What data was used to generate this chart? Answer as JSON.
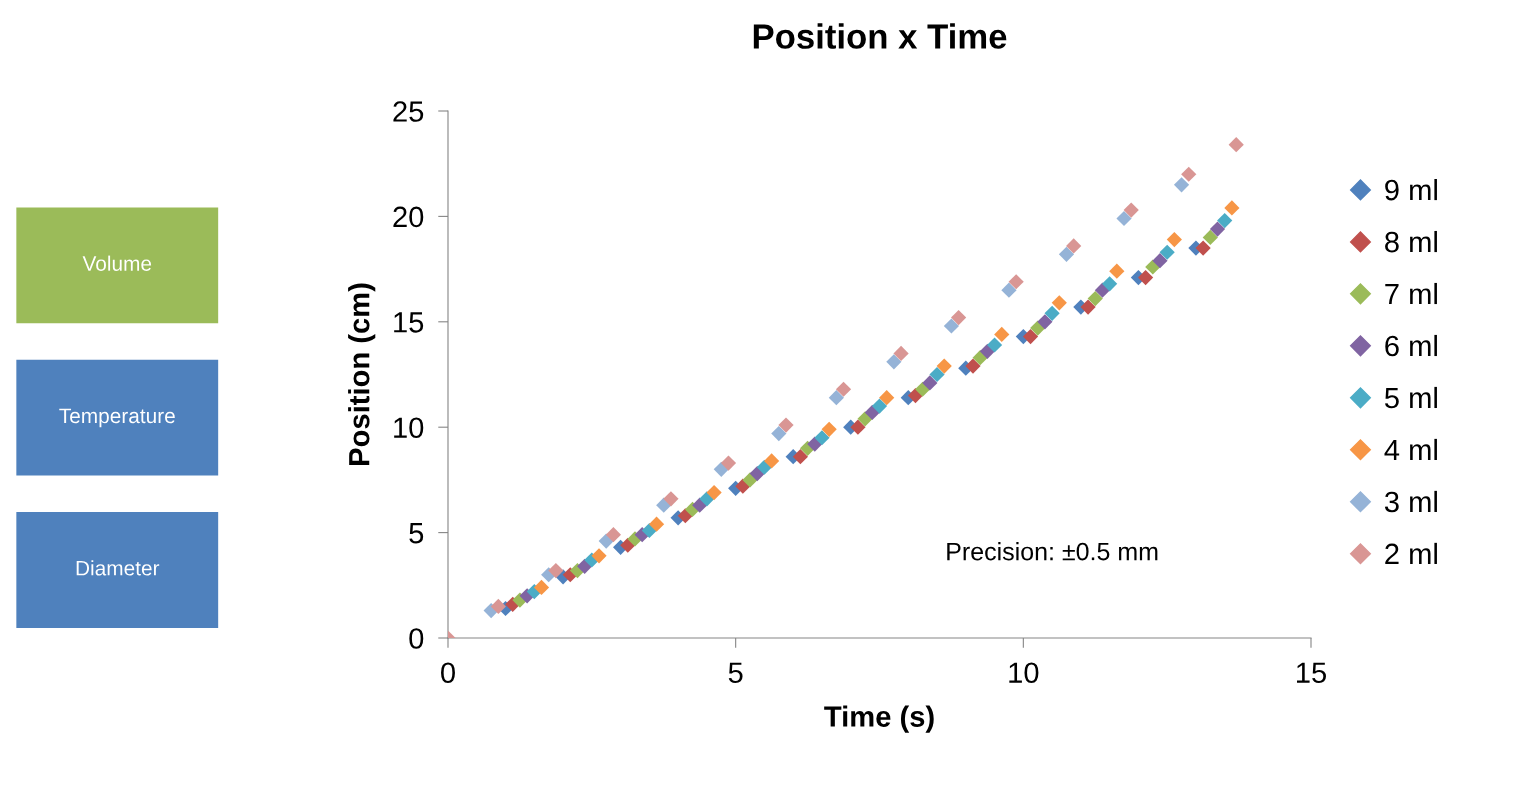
{
  "chart_data": [
    {
      "type": "other",
      "annotations": [
        "Volume",
        "Temperature",
        "Diameter"
      ],
      "colors": [
        "#9bbb59",
        "#4f81bd",
        "#4f81bd"
      ]
    },
    {
      "type": "scatter",
      "title": "Position x Time",
      "xlabel": "Time (s)",
      "ylabel": "Position (cm)",
      "xlim": [
        0,
        15
      ],
      "xticks": [
        0,
        5,
        10,
        15
      ],
      "ylim": [
        0,
        25
      ],
      "yticks": [
        0,
        5,
        10,
        15,
        20,
        25
      ],
      "grid": false,
      "legend": "right",
      "marker": "diamond",
      "annotations": [
        "Precision: ±0.5 mm"
      ],
      "series": [
        {
          "name": "9 ml",
          "color": "#4f81bd",
          "x": [
            1,
            2,
            3,
            4,
            5,
            6,
            7,
            8,
            9,
            10,
            11,
            12,
            13
          ],
          "values": [
            1.4,
            2.9,
            4.3,
            5.7,
            7.1,
            8.6,
            10.0,
            11.4,
            12.8,
            14.3,
            15.7,
            17.1,
            18.5
          ]
        },
        {
          "name": "8 ml",
          "color": "#c0504d",
          "x": [
            1.125,
            2.125,
            3.125,
            4.125,
            5.125,
            6.125,
            7.125,
            8.125,
            9.125,
            10.125,
            11.125,
            12.125,
            13.125
          ],
          "values": [
            1.6,
            3.0,
            4.4,
            5.8,
            7.2,
            8.6,
            10.0,
            11.5,
            12.9,
            14.3,
            15.7,
            17.1,
            18.5
          ]
        },
        {
          "name": "7 ml",
          "color": "#9bbb59",
          "x": [
            1.25,
            2.25,
            3.25,
            4.25,
            5.25,
            6.25,
            7.25,
            8.25,
            9.25,
            10.25,
            11.25,
            12.25,
            13.25
          ],
          "values": [
            1.8,
            3.2,
            4.7,
            6.1,
            7.5,
            9.0,
            10.4,
            11.8,
            13.3,
            14.7,
            16.1,
            17.6,
            19.0
          ]
        },
        {
          "name": "6 ml",
          "color": "#8064a2",
          "x": [
            1.375,
            2.375,
            3.375,
            4.375,
            5.375,
            6.375,
            7.375,
            8.375,
            9.375,
            10.375,
            11.375,
            12.375,
            13.375
          ],
          "values": [
            2.0,
            3.4,
            4.9,
            6.3,
            7.8,
            9.2,
            10.7,
            12.1,
            13.6,
            15.0,
            16.5,
            17.9,
            19.4
          ]
        },
        {
          "name": "5 ml",
          "color": "#4bacc6",
          "x": [
            1.5,
            2.5,
            3.5,
            4.5,
            5.5,
            6.5,
            7.5,
            8.5,
            9.5,
            10.5,
            11.5,
            12.5,
            13.5
          ],
          "values": [
            2.2,
            3.7,
            5.1,
            6.6,
            8.1,
            9.5,
            11.0,
            12.5,
            13.9,
            15.4,
            16.8,
            18.3,
            19.8
          ]
        },
        {
          "name": "4 ml",
          "color": "#f79646",
          "x": [
            1.625,
            2.625,
            3.625,
            4.625,
            5.625,
            6.625,
            7.625,
            8.625,
            9.625,
            10.625,
            11.625,
            12.625,
            13.625
          ],
          "values": [
            2.4,
            3.9,
            5.4,
            6.9,
            8.4,
            9.9,
            11.4,
            12.9,
            14.4,
            15.9,
            17.4,
            18.9,
            20.4
          ]
        },
        {
          "name": "3 ml",
          "color": "#95b3d7",
          "x": [
            0.75,
            1.75,
            2.75,
            3.75,
            4.75,
            5.75,
            6.75,
            7.75,
            8.75,
            9.75,
            10.75,
            11.75,
            12.75
          ],
          "values": [
            1.3,
            3.0,
            4.6,
            6.3,
            8.0,
            9.7,
            11.4,
            13.1,
            14.8,
            16.5,
            18.2,
            19.9,
            21.5
          ]
        },
        {
          "name": "2 ml",
          "color": "#d99694",
          "x": [
            0,
            0.875,
            1.875,
            2.875,
            3.875,
            4.875,
            5.875,
            6.875,
            7.875,
            8.875,
            9.875,
            10.875,
            11.875,
            12.875,
            13.7
          ],
          "values": [
            0,
            1.5,
            3.2,
            4.9,
            6.6,
            8.3,
            10.1,
            11.8,
            13.5,
            15.2,
            16.9,
            18.6,
            20.3,
            22.0,
            23.4
          ]
        }
      ]
    }
  ]
}
